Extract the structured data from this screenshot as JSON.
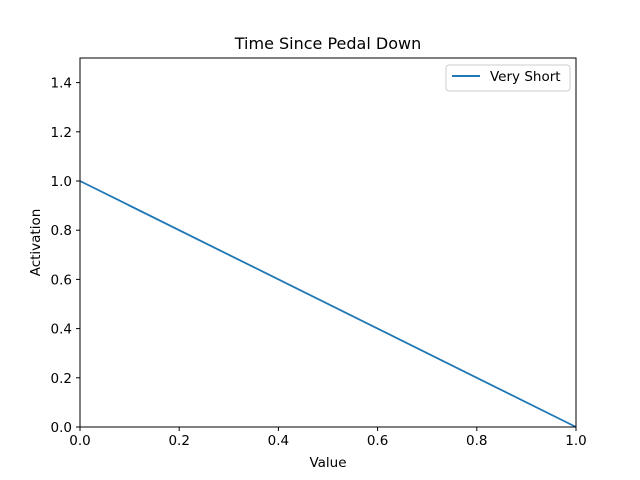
{
  "chart_data": {
    "type": "line",
    "title": "Time Since Pedal Down",
    "xlabel": "Value",
    "ylabel": "Activation",
    "xlim": [
      0,
      1
    ],
    "ylim": [
      0,
      1.5
    ],
    "xticks": [
      "0.0",
      "0.2",
      "0.4",
      "0.6",
      "0.8",
      "1.0"
    ],
    "yticks": [
      "0.0",
      "0.2",
      "0.4",
      "0.6",
      "0.8",
      "1.0",
      "1.2",
      "1.4"
    ],
    "grid": false,
    "legend_position": "top-right",
    "series": [
      {
        "name": "Very Short",
        "color": "#1f77b4",
        "x": [
          0,
          1
        ],
        "y": [
          1,
          0
        ]
      }
    ]
  }
}
